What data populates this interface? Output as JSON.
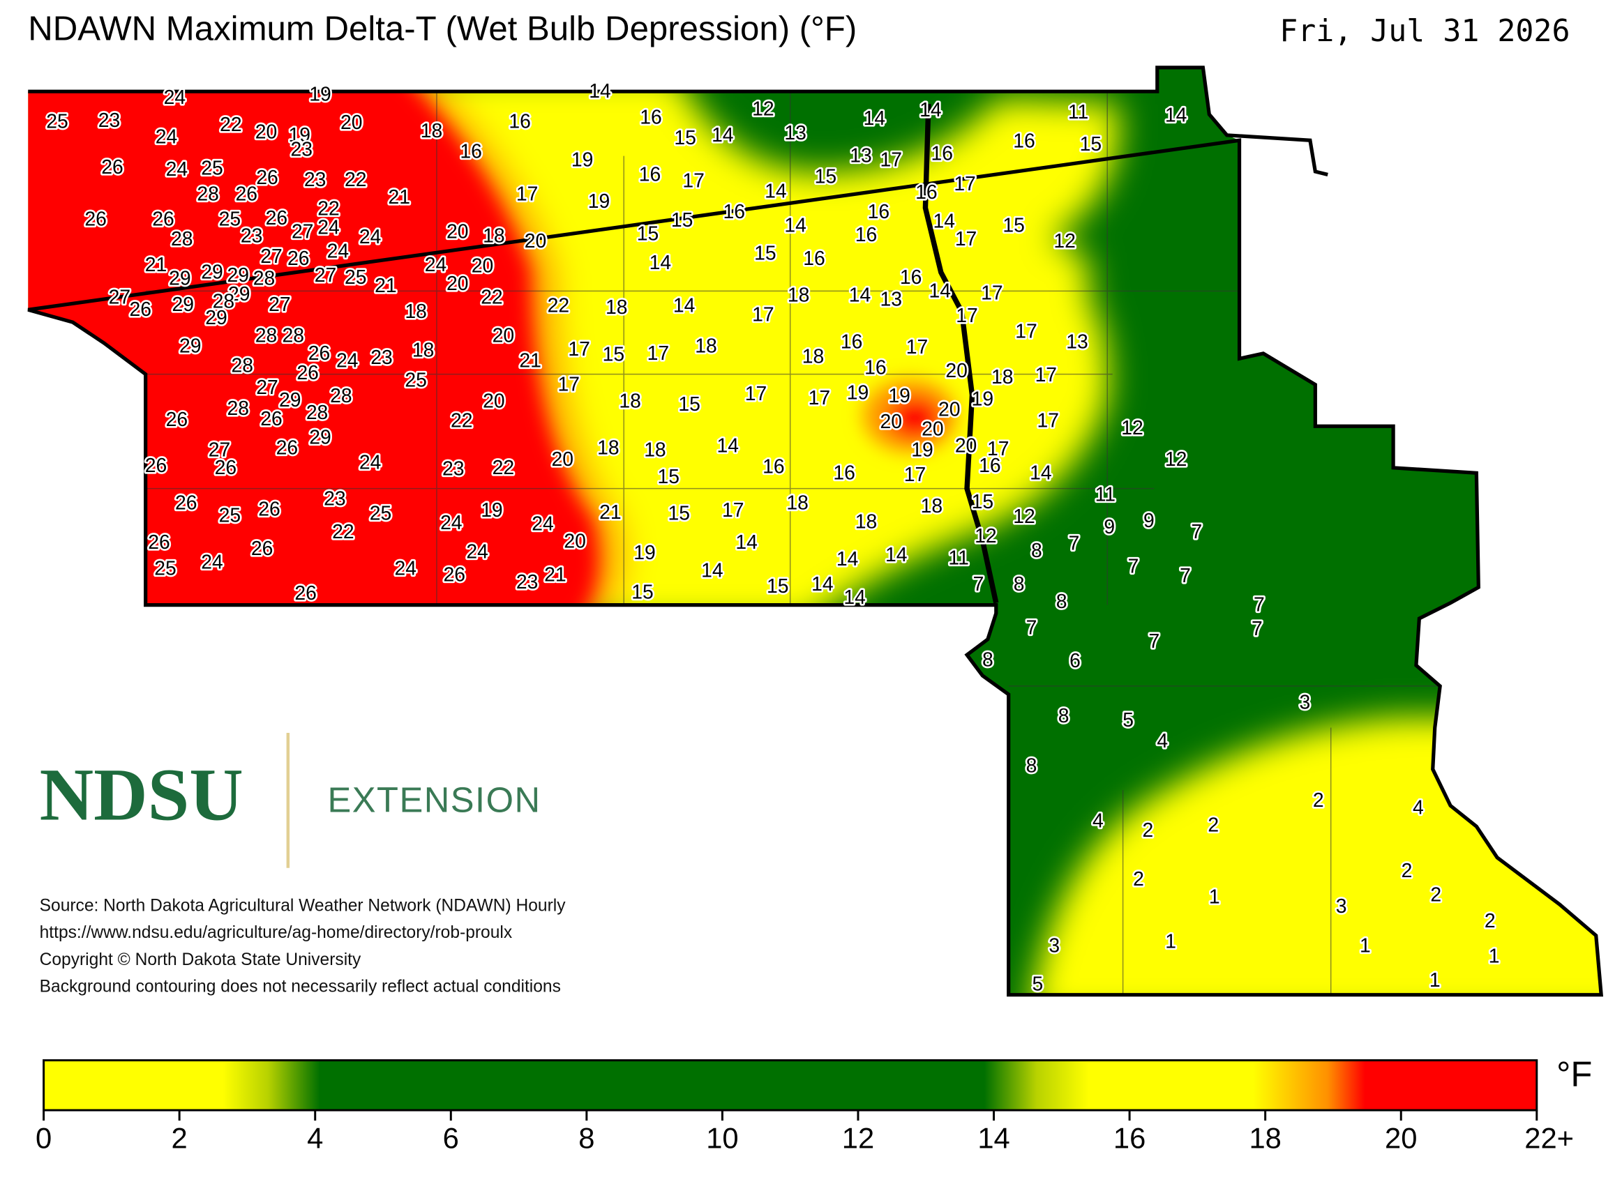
{
  "header": {
    "title": "NDAWN Maximum Delta-T (Wet Bulb Depression) (°F)",
    "date": "Fri, Jul 31 2026"
  },
  "map": {
    "station_values": [
      25,
      23,
      24,
      19,
      14,
      24,
      22,
      20,
      19,
      23,
      20,
      18,
      16,
      16,
      16,
      15,
      14,
      12,
      13,
      14,
      14,
      11,
      14,
      16,
      15,
      26,
      24,
      25,
      26,
      23,
      22,
      19,
      16,
      17,
      13,
      17,
      16,
      28,
      26,
      21,
      17,
      19,
      14,
      15,
      16,
      17,
      22,
      26,
      26,
      25,
      26,
      27,
      24,
      28,
      23,
      24,
      20,
      18,
      20,
      15,
      15,
      16,
      14,
      16,
      16,
      14,
      17,
      15,
      12,
      27,
      26,
      24,
      21,
      29,
      29,
      29,
      28,
      24,
      20,
      14,
      15,
      16,
      27,
      25,
      21,
      20,
      16,
      29,
      14,
      17,
      27,
      26,
      29,
      28,
      29,
      27,
      22,
      18,
      22,
      18,
      14,
      18,
      14,
      13,
      17,
      17,
      28,
      28,
      29,
      20,
      17,
      15,
      17,
      18,
      16,
      17,
      17,
      13,
      26,
      24,
      23,
      18,
      28,
      26,
      21,
      18,
      16,
      20,
      18,
      17,
      25,
      17,
      27,
      29,
      28,
      20,
      18,
      15,
      17,
      17,
      19,
      19,
      19,
      28,
      26,
      28,
      26,
      22,
      20,
      20,
      20,
      17,
      12,
      29,
      27,
      26,
      18,
      18,
      14,
      19,
      20,
      17,
      26,
      26,
      24,
      23,
      22,
      20,
      16,
      16,
      16,
      12,
      15,
      17,
      14,
      11,
      26,
      25,
      26,
      23,
      25,
      19,
      24,
      21,
      15,
      17,
      18,
      18,
      15,
      18,
      12,
      9,
      9,
      24,
      22,
      26,
      26,
      20,
      24,
      19,
      14,
      12,
      8,
      7,
      7,
      25,
      24,
      24,
      26,
      23,
      21,
      14,
      14,
      14,
      11,
      7,
      7,
      26,
      15,
      15,
      14,
      14,
      7,
      8,
      8,
      7,
      7,
      7,
      7,
      8,
      6,
      3,
      8,
      5,
      4,
      8,
      2,
      4,
      4,
      2,
      2,
      2,
      2,
      1,
      2,
      3,
      2,
      3,
      1,
      1,
      1,
      1,
      5
    ]
  },
  "logo": {
    "name": "NDSU",
    "unit": "EXTENSION"
  },
  "notes": [
    "Source: North Dakota Agricultural Weather Network (NDAWN) Hourly",
    "https://www.ndsu.edu/agriculture/ag-home/directory/rob-proulx",
    "Copyright © North Dakota State University",
    "Background contouring does not necessarily reflect actual conditions"
  ],
  "colorbar": {
    "range": [
      0,
      22
    ],
    "ticks": [
      0,
      2,
      4,
      6,
      8,
      10,
      12,
      14,
      16,
      18,
      20,
      {
        "value": 22,
        "label": "22+"
      }
    ],
    "unit": "°F"
  }
}
